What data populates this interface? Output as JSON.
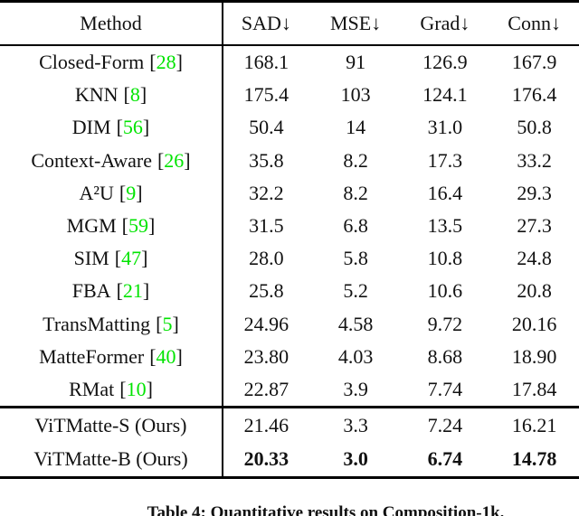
{
  "colors": {
    "citation_green": "#00e400",
    "rule_black": "#000000",
    "text_black": "#111111",
    "background": "#ffffff"
  },
  "table": {
    "cite_open": "[",
    "cite_close": "]",
    "columns": [
      "Method",
      "SAD↓",
      "MSE↓",
      "Grad↓",
      "Conn↓"
    ],
    "rows": [
      {
        "method": "Closed-Form",
        "cite": "28",
        "values": [
          "168.1",
          "91",
          "126.9",
          "167.9"
        ]
      },
      {
        "method": "KNN",
        "cite": "8",
        "values": [
          "175.4",
          "103",
          "124.1",
          "176.4"
        ]
      },
      {
        "method": "DIM",
        "cite": "56",
        "values": [
          "50.4",
          "14",
          "31.0",
          "50.8"
        ]
      },
      {
        "method": "Context-Aware",
        "cite": "26",
        "values": [
          "35.8",
          "8.2",
          "17.3",
          "33.2"
        ]
      },
      {
        "method": "A²U",
        "cite": "9",
        "values": [
          "32.2",
          "8.2",
          "16.4",
          "29.3"
        ]
      },
      {
        "method": "MGM",
        "cite": "59",
        "values": [
          "31.5",
          "6.8",
          "13.5",
          "27.3"
        ]
      },
      {
        "method": "SIM",
        "cite": "47",
        "values": [
          "28.0",
          "5.8",
          "10.8",
          "24.8"
        ]
      },
      {
        "method": "FBA",
        "cite": "21",
        "values": [
          "25.8",
          "5.2",
          "10.6",
          "20.8"
        ]
      },
      {
        "method": "TransMatting",
        "cite": "5",
        "values": [
          "24.96",
          "4.58",
          "9.72",
          "20.16"
        ]
      },
      {
        "method": "MatteFormer",
        "cite": "40",
        "values": [
          "23.80",
          "4.03",
          "8.68",
          "18.90"
        ]
      },
      {
        "method": "RMat",
        "cite": "10",
        "values": [
          "22.87",
          "3.9",
          "7.74",
          "17.84"
        ]
      }
    ],
    "ours_rows": [
      {
        "method": "ViTMatte-S (Ours)",
        "values": [
          "21.46",
          "3.3",
          "7.24",
          "16.21"
        ]
      },
      {
        "method": "ViTMatte-B (Ours)",
        "values": [
          "20.33",
          "3.0",
          "6.74",
          "14.78"
        ]
      }
    ]
  },
  "caption": "Table 4: Quantitative results on Composition-1k."
}
